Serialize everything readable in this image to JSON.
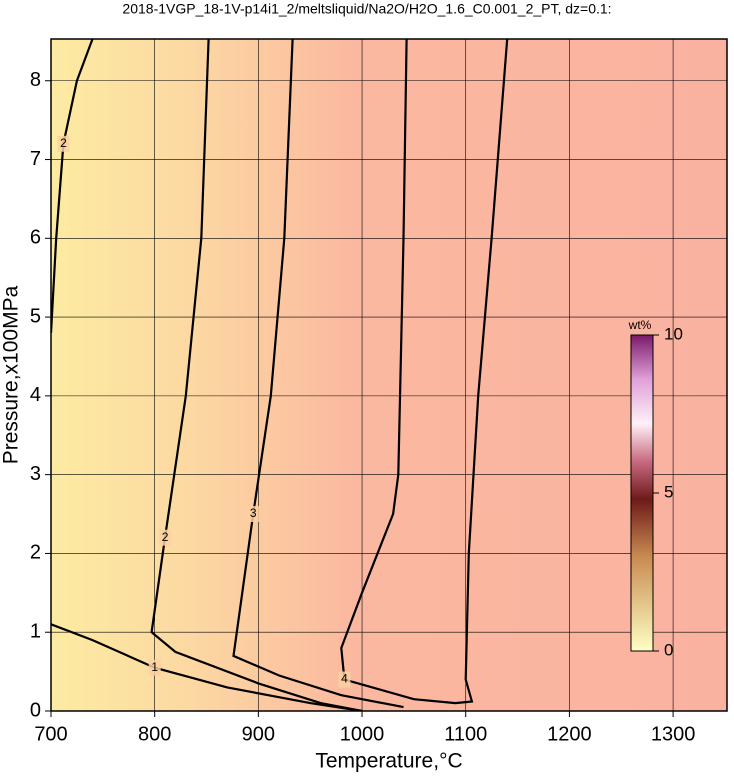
{
  "chart_data": {
    "type": "contour",
    "title": "2018-1VGP_18-1V-p14i1_2/meltsliquid/Na2O/H2O_1.6_C0.001_2_PT, dz=0.1:",
    "x_label": "Temperature,°C",
    "y_label": "Pressure,x100MPa",
    "xlim": [
      700,
      1352
    ],
    "ylim": [
      0,
      8.53
    ],
    "xticks": [
      700,
      800,
      900,
      1000,
      1100,
      1200,
      1300
    ],
    "yticks": [
      0,
      1,
      2,
      3,
      4,
      5,
      6,
      7,
      8
    ],
    "grid": true,
    "contours": [
      {
        "level": 1,
        "x": [
          700,
          740,
          800,
          870,
          950,
          1000
        ],
        "y": [
          1.1,
          0.9,
          0.55,
          0.3,
          0.1,
          0
        ]
      },
      {
        "level": 2,
        "x": [
          700,
          705,
          712,
          725,
          740
        ],
        "y": [
          4.8,
          6,
          7.2,
          8,
          8.53
        ]
      },
      {
        "level": 2,
        "x": [
          852,
          845,
          830,
          810,
          797,
          820,
          900,
          960,
          1000
        ],
        "y": [
          8.53,
          6,
          4,
          2.2,
          1.0,
          0.75,
          0.35,
          0.1,
          0
        ]
      },
      {
        "level": 3,
        "x": [
          933,
          925,
          912,
          895,
          876,
          920,
          980,
          1040
        ],
        "y": [
          8.53,
          6,
          4,
          2.5,
          0.7,
          0.45,
          0.2,
          0.05
        ]
      },
      {
        "level": 4,
        "x": [
          1043,
          1040,
          1035,
          1030,
          1000,
          980,
          983,
          1010,
          1050,
          1090,
          1106,
          1100,
          1103,
          1112,
          1125,
          1140
        ],
        "y": [
          8.53,
          6,
          3,
          2.5,
          1.5,
          0.8,
          0.4,
          0.3,
          0.15,
          0.1,
          0.12,
          0.4,
          2,
          4,
          6,
          8.53
        ]
      }
    ],
    "colorbar": {
      "label": "wt%",
      "lim": [
        0,
        10
      ],
      "ticks": [
        0,
        5,
        10
      ]
    }
  }
}
